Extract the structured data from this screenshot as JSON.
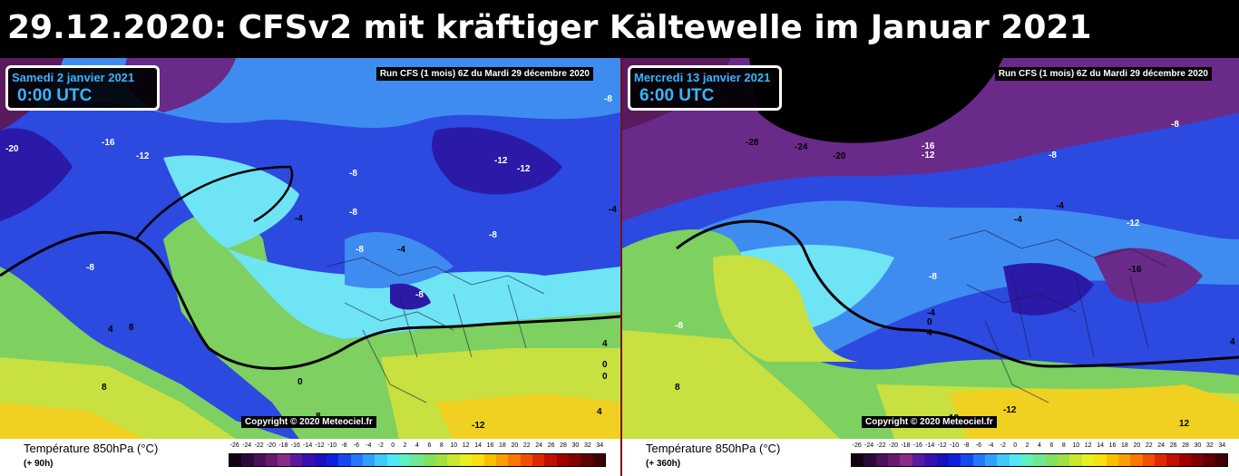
{
  "header": {
    "title": "29.12.2020: CFSv2 mit kräftiger Kältewelle im Januar 2021"
  },
  "colors": {
    "header_bg": "#000000",
    "divider": "#7a1010",
    "date_text": "#37b6ff",
    "iso_minus24": "#2a0a3a",
    "iso_minus20": "#5a1a5e",
    "iso_minus16": "#6a2a8a",
    "iso_minus12": "#2b1aa8",
    "iso_minus8": "#2c49e0",
    "iso_minus4": "#3f8cf0",
    "iso_0": "#6fe4f4",
    "iso_4": "#7ed060",
    "iso_8": "#c8e040",
    "iso_12": "#f0d020"
  },
  "scale": {
    "ticks": [
      "-26",
      "-24",
      "-22",
      "-20",
      "-18",
      "-16",
      "-14",
      "-12",
      "-10",
      "-8",
      "-6",
      "-4",
      "-2",
      "0",
      "2",
      "4",
      "6",
      "8",
      "10",
      "12",
      "14",
      "16",
      "18",
      "20",
      "22",
      "24",
      "26",
      "28",
      "30",
      "32",
      "34"
    ],
    "colors": [
      "#140014",
      "#2a0a3a",
      "#4a1258",
      "#6a1a6e",
      "#8a2a8a",
      "#5a1aa0",
      "#3a10b0",
      "#1a10c0",
      "#1020e0",
      "#1848f0",
      "#2878ff",
      "#30a0ff",
      "#40c8ff",
      "#50e8f8",
      "#60f0c0",
      "#70e890",
      "#80e060",
      "#a0e040",
      "#c8e830",
      "#e8f020",
      "#f8e010",
      "#f8c000",
      "#f8a000",
      "#f87800",
      "#f05000",
      "#e02800",
      "#c01000",
      "#a00000",
      "#800000",
      "#600000",
      "#400000"
    ]
  },
  "panels": [
    {
      "date_line": "Samedi 2 janvier 2021",
      "time_line": "0:00 UTC",
      "run_label": "Run CFS (1 mois) 6Z du Mardi 29 décembre 2020",
      "copyright": "Copyright © 2020 Meteociel.fr",
      "legend_title": "Température 850hPa (°C)",
      "horizon": "(+ 90h)",
      "labels": [
        "-20",
        "-16",
        "-12",
        "-8",
        "-8",
        "-8",
        "-4",
        "-4",
        "-8",
        "-8",
        "-12",
        "-12",
        "-8",
        "-8",
        "-4",
        "8",
        "4",
        "8",
        "0",
        "8",
        "0",
        "4",
        "0",
        "-12",
        "4"
      ]
    },
    {
      "date_line": "Mercredi 13 janvier 2021",
      "time_line": "6:00 UTC",
      "run_label": "Run CFS (1 mois) 6Z du Mardi 29 décembre 2020",
      "copyright": "Copyright © 2020 Meteociel.fr",
      "legend_title": "Température 850hPa (°C)",
      "horizon": "(+ 360h)",
      "labels": [
        "-28",
        "-24",
        "-20",
        "-16",
        "-12",
        "-8",
        "-8",
        "-4",
        "-4",
        "-12",
        "-16",
        "-8",
        "-8",
        "-4",
        "0",
        "4",
        "8",
        "12",
        "4",
        "12",
        "-12"
      ]
    }
  ]
}
